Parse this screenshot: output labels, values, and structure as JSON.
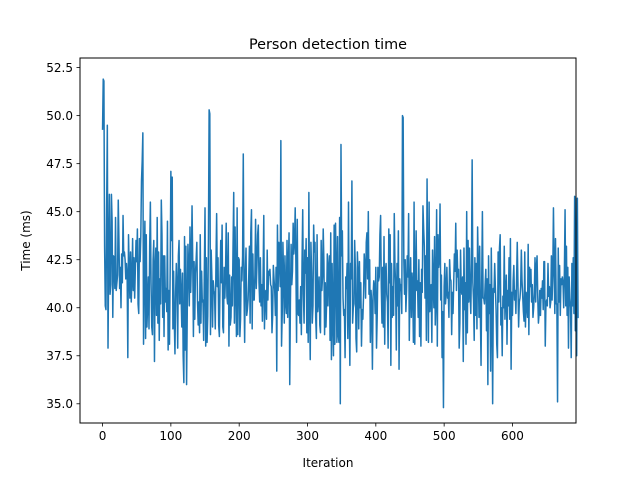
{
  "chart_data": {
    "type": "line",
    "title": "Person detection time",
    "xlabel": "Iteration",
    "ylabel": "Time (ms)",
    "xlim": [
      -33,
      693
    ],
    "ylim": [
      34,
      53
    ],
    "xticks": [
      0,
      100,
      200,
      300,
      400,
      500,
      600
    ],
    "xtick_labels": [
      "0",
      "100",
      "200",
      "300",
      "400",
      "500",
      "600"
    ],
    "yticks": [
      35.0,
      37.5,
      40.0,
      42.5,
      45.0,
      47.5,
      50.0,
      52.5
    ],
    "ytick_labels": [
      "35.0",
      "37.5",
      "40.0",
      "42.5",
      "45.0",
      "47.5",
      "50.0",
      "52.5"
    ],
    "grid": false,
    "series": [
      {
        "name": "",
        "color": "#1f77b4",
        "x_start": 0,
        "x_step": 1,
        "values": [
          49.3,
          51.9,
          51.8,
          43.2,
          40.1,
          39.9,
          45.2,
          49.5,
          37.9,
          42.5,
          45.9,
          40.7,
          41.2,
          45.9,
          44.5,
          39.5,
          42.7,
          42.6,
          41.0,
          44.7,
          40.9,
          41.3,
          41.7,
          45.6,
          43.5,
          41.0,
          42.1,
          40.0,
          42.8,
          41.3,
          44.8,
          42.7,
          42.9,
          42.5,
          41.5,
          42.3,
          41.7,
          37.4,
          43.8,
          42.0,
          40.5,
          42.9,
          40.3,
          41.4,
          43.6,
          40.9,
          42.6,
          40.5,
          42.0,
          43.5,
          42.4,
          44.1,
          40.2,
          39.7,
          43.6,
          42.4,
          43.7,
          46.6,
          47.6,
          49.1,
          38.1,
          42.2,
          44.5,
          38.4,
          43.8,
          39.0,
          40.2,
          41.6,
          38.9,
          43.2,
          45.5,
          41.3,
          39.0,
          38.6,
          42.5,
          43.5,
          37.2,
          42.0,
          43.1,
          39.6,
          44.7,
          39.2,
          42.9,
          38.3,
          41.5,
          40.2,
          45.6,
          43.8,
          39.5,
          42.7,
          38.5,
          42.7,
          40.3,
          41.0,
          39.8,
          44.5,
          37.8,
          40.9,
          38.1,
          42.0,
          47.1,
          43.5,
          46.8,
          38.9,
          41.9,
          39.3,
          37.6,
          40.8,
          42.3,
          41.1,
          37.9,
          42.7,
          43.5,
          40.2,
          42.0,
          40.7,
          39.0,
          41.8,
          37.5,
          36.1,
          43.7,
          37.8,
          43.2,
          36.0,
          39.8,
          43.3,
          42.1,
          40.1,
          44.2,
          40.8,
          42.3,
          45.3,
          42.5,
          38.5,
          42.4,
          39.4,
          41.8,
          42.5,
          43.4,
          40.3,
          39.1,
          40.3,
          38.7,
          43.8,
          39.2,
          41.9,
          40.3,
          40.4,
          38.3,
          41.9,
          45.2,
          38.0,
          42.6,
          38.2,
          39.6,
          43.6,
          50.3,
          50.1,
          38.6,
          43.0,
          41.6,
          39.0,
          41.4,
          40.9,
          40.7,
          38.9,
          42.3,
          44.9,
          41.1,
          42.6,
          39.1,
          38.5,
          41.4,
          43.5,
          41.3,
          44.3,
          39.0,
          38.7,
          42.1,
          40.5,
          41.7,
          44.4,
          40.6,
          40.2,
          43.9,
          38.0,
          41.7,
          39.1,
          39.5,
          41.6,
          40.1,
          43.2,
          46.0,
          39.2,
          44.2,
          41.1,
          38.5,
          45.2,
          38.6,
          42.6,
          42.5,
          38.5,
          39.4,
          42.1,
          41.4,
          42.7,
          48.0,
          41.1,
          38.2,
          41.9,
          43.1,
          39.6,
          39.9,
          40.4,
          41.6,
          43.2,
          39.2,
          43.9,
          45.1,
          38.9,
          42.8,
          40.4,
          40.4,
          41.7,
          44.6,
          41.0,
          42.2,
          43.8,
          44.3,
          41.3,
          40.3,
          42.6,
          40.1,
          41.2,
          39.3,
          41.7,
          44.8,
          38.9,
          40.7,
          40.9,
          39.4,
          43.0,
          40.4,
          41.9,
          41.7,
          42.0,
          41.2,
          41.1,
          38.7,
          39.6,
          42.2,
          41.5,
          40.9,
          39.6,
          42.1,
          36.7,
          44.3,
          40.9,
          43.4,
          42.6,
          41.1,
          48.7,
          38.0,
          39.7,
          43.4,
          41.6,
          39.2,
          42.7,
          40.3,
          39.7,
          43.5,
          39.5,
          42.3,
          43.9,
          36.0,
          40.3,
          43.3,
          41.2,
          41.9,
          44.4,
          42.8,
          43.4,
          45.2,
          42.3,
          38.2,
          44.6,
          39.7,
          39.6,
          40.4,
          39.2,
          41.1,
          38.6,
          42.4,
          45.1,
          40.7,
          39.2,
          43.0,
          41.8,
          43.6,
          38.7,
          42.6,
          38.2,
          46.0,
          40.2,
          37.3,
          43.4,
          41.8,
          39.2,
          40.1,
          44.3,
          42.9,
          43.4,
          39.5,
          38.4,
          43.8,
          39.8,
          40.4,
          41.6,
          39.1,
          38.7,
          43.5,
          40.9,
          41.6,
          44.1,
          42.4,
          38.6,
          41.3,
          39.0,
          40.3,
          42.8,
          40.1,
          42.1,
          42.7,
          38.3,
          43.9,
          37.3,
          42.3,
          39.5,
          37.5,
          44.3,
          38.1,
          44.4,
          42.0,
          38.2,
          43.7,
          38.6,
          38.2,
          44.7,
          35.0,
          48.5,
          42.7,
          44.0,
          40.5,
          39.6,
          39.9,
          37.4,
          41.6,
          41.0,
          42.3,
          38.4,
          45.5,
          39.9,
          37.0,
          42.3,
          41.5,
          46.6,
          39.2,
          40.0,
          40.2,
          43.5,
          42.1,
          38.4,
          37.7,
          42.9,
          41.8,
          38.9,
          42.4,
          40.0,
          41.3,
          38.0,
          39.9,
          39.4,
          40.6,
          42.8,
          42.2,
          40.5,
          43.4,
          43.9,
          41.5,
          45.0,
          40.7,
          42.5,
          38.2,
          40.9,
          40.2,
          36.8,
          40.6,
          41.4,
          41.1,
          39.7,
          42.1,
          37.9,
          39.5,
          42.1,
          41.4,
          41.6,
          43.8,
          44.8,
          41.1,
          39.2,
          42.1,
          39.0,
          43.7,
          38.1,
          41.9,
          42.3,
          40.7,
          40.3,
          37.9,
          44.1,
          41.3,
          43.8,
          37.0,
          42.3,
          39.5,
          41.1,
          39.6,
          44.9,
          42.2,
          41.2,
          37.8,
          42.3,
          40.1,
          44.0,
          36.8,
          41.5,
          40.9,
          41.2,
          39.7,
          50.0,
          49.9,
          42.5,
          40.7,
          42.5,
          39.8,
          40.9,
          42.7,
          41.6,
          44.9,
          38.3,
          40.9,
          42.6,
          39.5,
          41.8,
          41.0,
          38.2,
          45.5,
          38.1,
          41.6,
          44.0,
          40.9,
          41.4,
          39.5,
          42.5,
          38.5,
          41.3,
          38.0,
          42.0,
          40.8,
          45.3,
          44.1,
          43.2,
          40.5,
          42.7,
          38.3,
          46.7,
          41.8,
          38.2,
          45.5,
          39.8,
          40.7,
          41.2,
          38.2,
          43.0,
          41.3,
          40.0,
          43.7,
          39.1,
          40.4,
          45.1,
          38.0,
          43.8,
          42.1,
          42.5,
          45.4,
          40.4,
          41.7,
          37.4,
          39.8,
          34.8,
          41.1,
          42.3,
          40.2,
          40.8,
          42.1,
          40.5,
          40.8,
          39.5,
          42.5,
          41.5,
          41.4,
          38.6,
          40.8,
          39.7,
          41.3,
          42.8,
          41.9,
          44.4,
          40.9,
          43.0,
          41.6,
          42.0,
          37.9,
          39.2,
          43.0,
          40.9,
          40.7,
          41.6,
          37.2,
          43.1,
          39.9,
          41.3,
          38.1,
          45.0,
          38.7,
          43.5,
          40.3,
          43.1,
          40.8,
          39.7,
          42.3,
          47.7,
          41.3,
          40.4,
          38.3,
          42.6,
          39.6,
          42.3,
          38.9,
          44.2,
          42.1,
          39.5,
          43.2,
          39.8,
          37.0,
          41.4,
          45.0,
          40.5,
          40.5,
          40.2,
          41.2,
          42.0,
          38.8,
          41.5,
          36.0,
          42.7,
          39.7,
          41.2,
          36.7,
          43.1,
          40.2,
          35.0,
          41.0,
          40.8,
          42.3,
          41.0,
          39.9,
          38.1,
          37.4,
          42.9,
          40.3,
          43.1,
          43.8,
          39.1,
          40.0,
          37.5,
          40.6,
          40.0,
          43.2,
          39.4,
          40.7,
          41.7,
          38.1,
          40.9,
          40.1,
          42.6,
          39.4,
          43.6,
          36.8,
          40.8,
          39.6,
          41.4,
          42.2,
          40.4,
          40.9,
          39.7,
          41.4,
          43.4,
          41.3,
          39.0,
          40.3,
          40.5,
          41.1,
          43.0,
          41.4,
          40.6,
          39.8,
          39.3,
          42.9,
          39.0,
          40.8,
          40.2,
          39.5,
          43.3,
          38.6,
          42.1,
          41.1,
          42.0,
          40.3,
          41.2,
          39.5,
          40.0,
          40.8,
          42.6,
          40.3,
          42.1,
          42.7,
          40.6,
          39.2,
          39.7,
          40.9,
          39.6,
          41.0,
          40.5,
          41.4,
          39.9,
          42.4,
          42.4,
          38.0,
          40.2,
          40.4,
          40.1,
          42.3,
          40.6,
          41.1,
          40.0,
          40.3,
          42.7,
          40.4,
          41.7,
          45.2,
          42.1,
          39.7,
          43.6,
          40.2,
          40.2,
          35.1,
          43.1,
          40.3,
          42.2,
          39.6,
          41.5,
          41.2,
          41.6,
          41.3,
          40.0,
          41.9,
          45.1,
          40.1,
          43.2,
          39.6,
          42.1,
          37.9,
          41.6,
          40.5,
          40.0,
          37.4,
          42.3,
          40.1,
          42.6,
          39.7,
          45.8,
          38.8,
          40.4,
          37.5,
          45.7,
          39.5
        ]
      }
    ]
  }
}
